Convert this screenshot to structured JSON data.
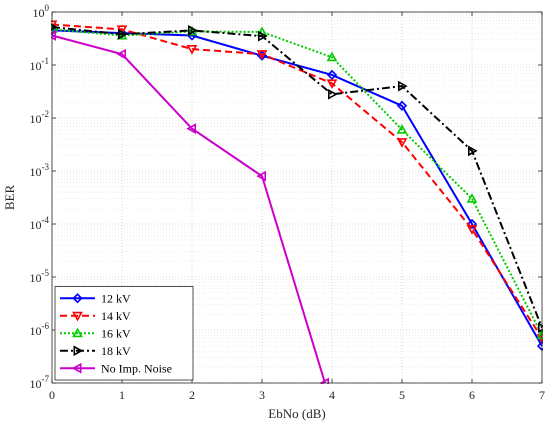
{
  "chart_data": {
    "type": "line",
    "xlabel": "EbNo (dB)",
    "ylabel": "BER",
    "xlim": [
      0,
      7
    ],
    "ylim_exp": [
      -7,
      0
    ],
    "yscale": "log",
    "grid": "major-and-minor",
    "legend_position": "bottom-left",
    "x_ticks": [
      "0",
      "1",
      "2",
      "3",
      "4",
      "5",
      "6",
      "7"
    ],
    "y_ticks": [
      {
        "exp": 0,
        "label": "10",
        "sup": "0"
      },
      {
        "exp": -1,
        "label": "10",
        "sup": "-1"
      },
      {
        "exp": -2,
        "label": "10",
        "sup": "-2"
      },
      {
        "exp": -3,
        "label": "10",
        "sup": "-3"
      },
      {
        "exp": -4,
        "label": "10",
        "sup": "-4"
      },
      {
        "exp": -5,
        "label": "10",
        "sup": "-5"
      },
      {
        "exp": -6,
        "label": "10",
        "sup": "-6"
      },
      {
        "exp": -7,
        "label": "10",
        "sup": "-7"
      }
    ],
    "series": [
      {
        "name": "12 kV",
        "color": "#0000ff",
        "dash": "",
        "marker": "diamond",
        "x": [
          0,
          1,
          2,
          3,
          4,
          5,
          6,
          7
        ],
        "y": [
          0.45,
          0.4,
          0.36,
          0.15,
          0.065,
          0.017,
          0.0001,
          5e-07
        ]
      },
      {
        "name": "14 kV",
        "color": "#ff0000",
        "dash": "7,4",
        "marker": "triangle-down",
        "x": [
          0,
          1,
          2,
          3,
          4,
          5,
          6,
          7
        ],
        "y": [
          0.58,
          0.47,
          0.2,
          0.16,
          0.045,
          0.0035,
          8e-05,
          7e-07
        ]
      },
      {
        "name": "16 kV",
        "color": "#00cc00",
        "dash": "2,2",
        "marker": "triangle-up",
        "x": [
          0,
          1,
          2,
          3,
          4,
          5,
          6,
          7
        ],
        "y": [
          0.47,
          0.36,
          0.43,
          0.42,
          0.14,
          0.006,
          0.0003,
          8e-07
        ]
      },
      {
        "name": "18 kV",
        "color": "#000000",
        "dash": "8,3,2,3",
        "marker": "triangle-right",
        "x": [
          0,
          1,
          2,
          3,
          4,
          5,
          6,
          7
        ],
        "y": [
          0.52,
          0.38,
          0.45,
          0.35,
          0.028,
          0.04,
          0.0024,
          1.1e-06
        ]
      },
      {
        "name": "No Imp. Noise",
        "color": "#cc00cc",
        "dash": "",
        "marker": "triangle-left",
        "x": [
          0,
          1,
          2,
          3,
          3.9
        ],
        "y": [
          0.36,
          0.16,
          0.0063,
          0.0008,
          1e-07
        ]
      }
    ]
  }
}
